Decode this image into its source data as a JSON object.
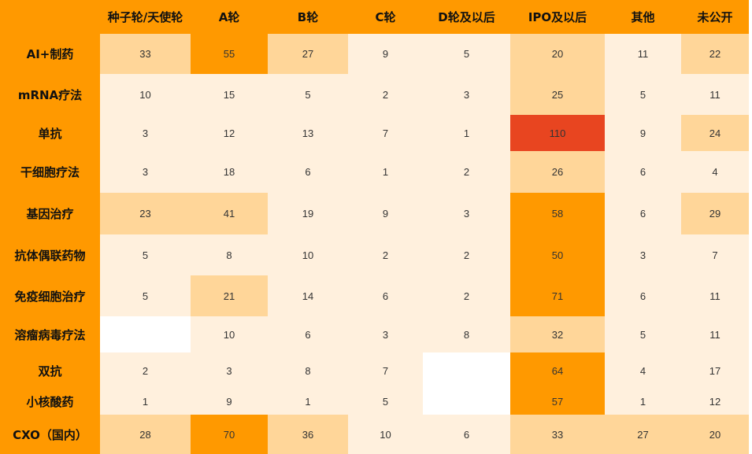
{
  "colors": {
    "header_bg": "#FF9900",
    "scale": [
      {
        "min": 0,
        "max": 20,
        "color": "#FFF0DD"
      },
      {
        "min": 20,
        "max": 50,
        "color": "#FFD699"
      },
      {
        "min": 50,
        "max": 100,
        "color": "#FF9900"
      },
      {
        "min": 100,
        "max": 1000,
        "color": "#E84520"
      }
    ],
    "blank": "#FFFFFF"
  },
  "chart_data": {
    "type": "heatmap",
    "columns": [
      "种子轮/天使轮",
      "A轮",
      "B轮",
      "C轮",
      "D轮及以后",
      "IPO及以后",
      "其他",
      "未公开"
    ],
    "rows": [
      "AI+制药",
      "mRNA疗法",
      "单抗",
      "干细胞疗法",
      "基因治疗",
      "抗体偶联药物",
      "免疫细胞治疗",
      "溶瘤病毒疗法",
      "双抗",
      "小核酸药",
      "CXO（国内）"
    ],
    "values": [
      [
        33,
        55,
        27,
        9,
        5,
        20,
        11,
        22
      ],
      [
        10,
        15,
        5,
        2,
        3,
        25,
        5,
        11
      ],
      [
        3,
        12,
        13,
        7,
        1,
        110,
        9,
        24
      ],
      [
        3,
        18,
        6,
        1,
        2,
        26,
        6,
        4
      ],
      [
        23,
        41,
        19,
        9,
        3,
        58,
        6,
        29
      ],
      [
        5,
        8,
        10,
        2,
        2,
        50,
        3,
        7
      ],
      [
        5,
        21,
        14,
        6,
        2,
        71,
        6,
        11
      ],
      [
        null,
        10,
        6,
        3,
        8,
        32,
        5,
        11
      ],
      [
        2,
        3,
        8,
        7,
        null,
        64,
        4,
        17
      ],
      [
        1,
        9,
        1,
        5,
        null,
        57,
        1,
        12
      ],
      [
        28,
        70,
        36,
        10,
        6,
        33,
        27,
        20
      ]
    ]
  }
}
